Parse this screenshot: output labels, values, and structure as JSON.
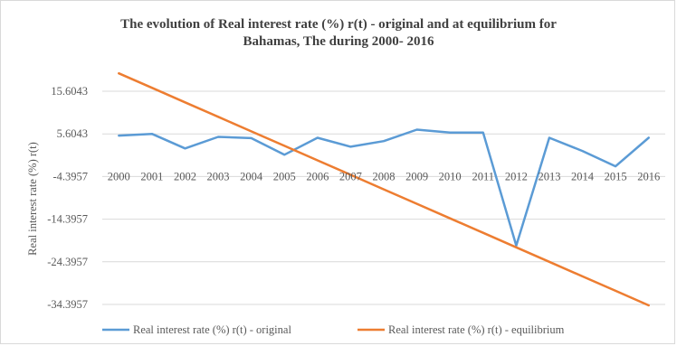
{
  "chart_data": {
    "type": "line",
    "title": [
      "The evolution of Real interest rate (%) r(t) - original and at equilibrium  for",
      "Bahamas, The during  2000- 2016"
    ],
    "xlabel": "",
    "ylabel": "Real interest rate (%) r(t)",
    "categories": [
      "2000",
      "2001",
      "2002",
      "2003",
      "2004",
      "2005",
      "2006",
      "2007",
      "2008",
      "2009",
      "2010",
      "2011",
      "2012",
      "2013",
      "2014",
      "2015",
      "2016"
    ],
    "y_ticks": [
      "15.6043",
      "5.6043",
      "-4.3957",
      "-14.3957",
      "-24.3957",
      "-34.3957"
    ],
    "y_tick_values": [
      15.6043,
      5.6043,
      -4.3957,
      -14.3957,
      -24.3957,
      -34.3957
    ],
    "ylim": [
      -34.3957,
      15.6043
    ],
    "grid": true,
    "legend_position": "bottom",
    "series": [
      {
        "name": "Real interest rate (%) r(t) - original",
        "color": "#5b9bd5",
        "values": [
          5.2,
          5.6,
          2.2,
          4.9,
          4.6,
          0.7,
          4.7,
          2.6,
          3.9,
          6.6,
          5.9,
          5.9,
          -20.6,
          4.7,
          1.6,
          -2.0,
          4.7
        ]
      },
      {
        "name": "Real interest rate (%) r(t) - equilibrium",
        "color": "#ed7d31",
        "values": [
          19.8,
          16.4,
          13.0,
          9.6,
          6.2,
          2.8,
          -0.6,
          -4.0,
          -7.4,
          -10.8,
          -14.2,
          -17.6,
          -21.0,
          -24.4,
          -27.8,
          -31.2,
          -34.6
        ]
      }
    ]
  }
}
